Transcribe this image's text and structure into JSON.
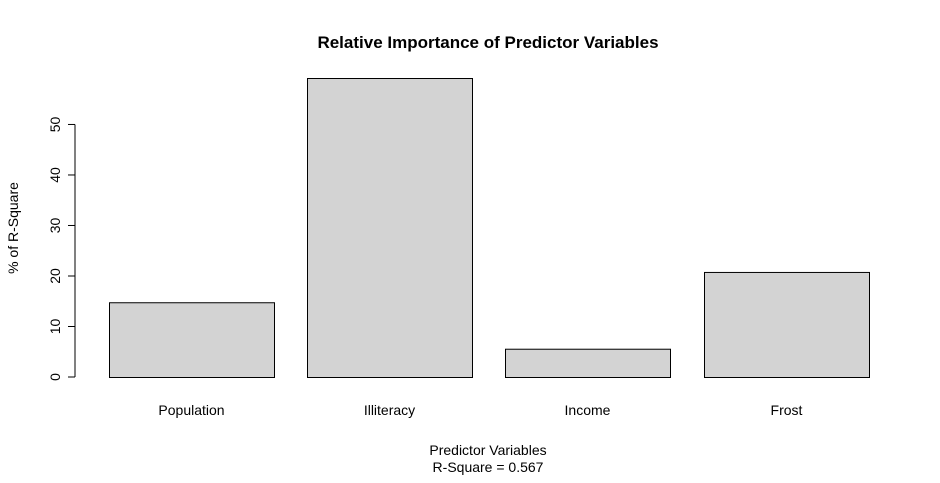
{
  "chart_data": {
    "type": "bar",
    "title": "Relative Importance of Predictor Variables",
    "xlabel": "Predictor Variables",
    "subtitle": "R-Square =  0.567",
    "ylabel": "% of R-Square",
    "categories": [
      "Population",
      "Illiteracy",
      "Income",
      "Frost"
    ],
    "values": [
      14.8,
      59.2,
      5.6,
      20.8
    ],
    "ylim": [
      0,
      59.2
    ],
    "yticks": [
      0,
      10,
      20,
      30,
      40,
      50
    ],
    "grid": false,
    "legend": "none",
    "colors": {
      "bar_fill": "#d3d3d3",
      "bar_stroke": "#000000",
      "axis": "#000000"
    }
  }
}
